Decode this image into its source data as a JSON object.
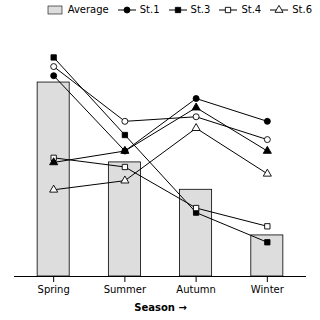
{
  "chart_data": {
    "type": "bar",
    "xlabel": "Season",
    "categories": [
      "Spring",
      "Summer",
      "Autumn",
      "Winter"
    ],
    "series": [
      {
        "name": "Average",
        "type": "bar",
        "color": "#dddddd",
        "values": [
          0.85,
          0.5,
          0.38,
          0.18
        ]
      },
      {
        "name": "St.1",
        "type": "line",
        "color": "black",
        "marker": "circle",
        "values": [
          0.88,
          0.55,
          0.78,
          0.68
        ]
      },
      {
        "name": null,
        "type": "line",
        "color": "black",
        "marker": "circle-open",
        "values": [
          0.92,
          0.68,
          0.7,
          0.6
        ]
      },
      {
        "name": "St.3",
        "type": "line",
        "color": "black",
        "marker": "square",
        "values": [
          0.96,
          0.62,
          0.28,
          0.15
        ]
      },
      {
        "name": "St.4",
        "type": "line",
        "color": "black",
        "marker": "square-open",
        "values": [
          0.52,
          0.48,
          0.3,
          0.22
        ]
      },
      {
        "name": null,
        "type": "line",
        "color": "black",
        "marker": "triangle",
        "values": [
          0.5,
          0.55,
          0.74,
          0.55
        ]
      },
      {
        "name": "St.6",
        "type": "line",
        "color": "black",
        "marker": "triangle-open",
        "values": [
          0.38,
          0.42,
          0.65,
          0.45
        ]
      }
    ],
    "ylim": [
      0.0,
      1.1
    ],
    "tick_labels": "x",
    "legend": "top-right"
  }
}
